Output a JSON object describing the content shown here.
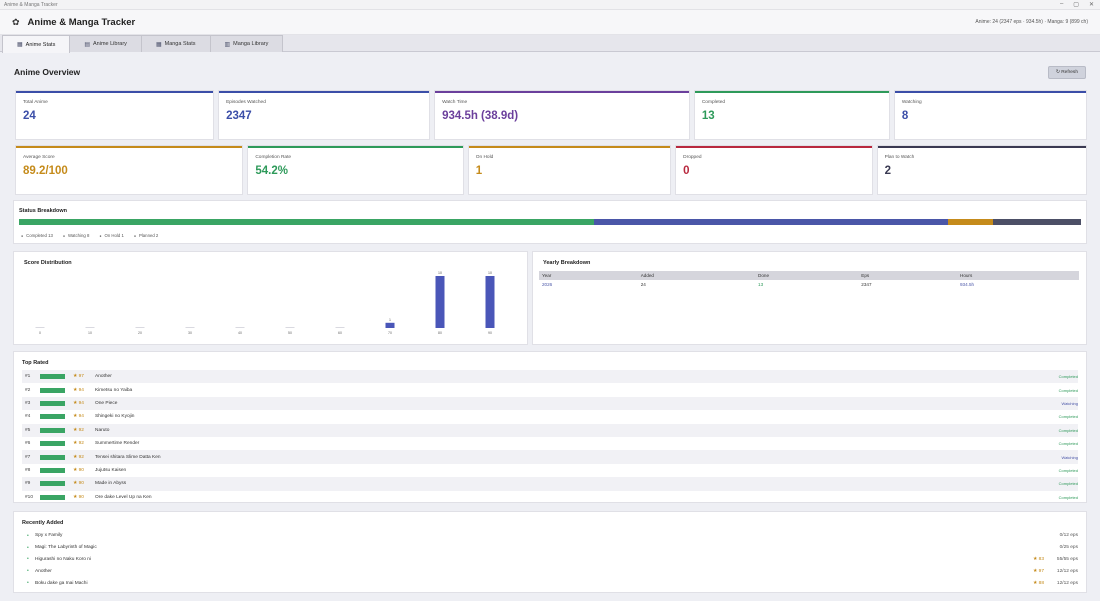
{
  "window": {
    "title": "Anime & Manga Tracker"
  },
  "header": {
    "title": "Anime & Manga Tracker",
    "summary": "Anime: 24 (2347 eps · 934.5h)  ·  Manga: 9 (899 ch)"
  },
  "tabs": [
    {
      "label": "Anime Stats",
      "active": true
    },
    {
      "label": "Anime Library",
      "active": false
    },
    {
      "label": "Manga Stats",
      "active": false
    },
    {
      "label": "Manga Library",
      "active": false
    }
  ],
  "overview": {
    "title": "Anime Overview",
    "refresh_label": "↻ Refresh"
  },
  "stats_row1": [
    {
      "label": "Total Anime",
      "value": "24",
      "color": "#3b4ea8"
    },
    {
      "label": "Episodes Watched",
      "value": "2347",
      "color": "#3b4ea8"
    },
    {
      "label": "Watch Time",
      "value": "934.5h (38.9d)",
      "color": "#6b3f9c"
    },
    {
      "label": "Completed",
      "value": "13",
      "color": "#2e9a5a"
    },
    {
      "label": "Watching",
      "value": "8",
      "color": "#3b4ea8"
    }
  ],
  "stats_row2": [
    {
      "label": "Average Score",
      "value": "89.2/100",
      "color": "#c58b1b"
    },
    {
      "label": "Completion Rate",
      "value": "54.2%",
      "color": "#2e9a5a"
    },
    {
      "label": "On Hold",
      "value": "1",
      "color": "#c58b1b"
    },
    {
      "label": "Dropped",
      "value": "0",
      "color": "#b8283e"
    },
    {
      "label": "Plan to Watch",
      "value": "2",
      "color": "#3a3a52"
    }
  ],
  "status": {
    "title": "Status Breakdown",
    "segments": [
      {
        "label": "Completed 13",
        "count": 13,
        "color": "#3aa564"
      },
      {
        "label": "Watching 8",
        "count": 8,
        "color": "#4a56a8"
      },
      {
        "label": "On Hold 1",
        "count": 1,
        "color": "#c58b1b"
      },
      {
        "label": "Planned 2",
        "count": 2,
        "color": "#4c4f66"
      }
    ]
  },
  "chart_data": {
    "type": "bar",
    "title": "Score Distribution",
    "categories": [
      "0",
      "10",
      "20",
      "30",
      "40",
      "50",
      "60",
      "70",
      "80",
      "90"
    ],
    "values": [
      0,
      0,
      0,
      0,
      0,
      0,
      0,
      1,
      10,
      10
    ]
  },
  "yearly": {
    "title": "Yearly Breakdown",
    "columns": [
      "Year",
      "Added",
      "Done",
      "Eps",
      "Hours"
    ],
    "rows": [
      [
        "2026",
        "24",
        "13",
        "2347",
        "934.5h"
      ]
    ]
  },
  "top_rated": {
    "title": "Top Rated",
    "items": [
      {
        "rank": "#1",
        "score": "★ 97",
        "name": "Another",
        "status": "Completed"
      },
      {
        "rank": "#2",
        "score": "★ 94",
        "name": "Kimetsu no Yaiba",
        "status": "Completed"
      },
      {
        "rank": "#3",
        "score": "★ 94",
        "name": "One Piece",
        "status": "Watching"
      },
      {
        "rank": "#4",
        "score": "★ 94",
        "name": "Shingeki no Kyojin",
        "status": "Completed"
      },
      {
        "rank": "#5",
        "score": "★ 92",
        "name": "Naruto",
        "status": "Completed"
      },
      {
        "rank": "#6",
        "score": "★ 92",
        "name": "Summertime Render",
        "status": "Completed"
      },
      {
        "rank": "#7",
        "score": "★ 92",
        "name": "Tensei shitara Slime Datta Ken",
        "status": "Watching"
      },
      {
        "rank": "#8",
        "score": "★ 90",
        "name": "Jujutsu Kaisen",
        "status": "Completed"
      },
      {
        "rank": "#9",
        "score": "★ 90",
        "name": "Made in Abyss",
        "status": "Completed"
      },
      {
        "rank": "#10",
        "score": "★ 90",
        "name": "Ore dake Level Up na Ken",
        "status": "Completed"
      }
    ],
    "status_colors": {
      "Completed": "#2e9a5a",
      "Watching": "#4a56a8"
    }
  },
  "recent": {
    "title": "Recently Added",
    "items": [
      {
        "name": "Spy x Family",
        "score": "",
        "eps": "0/12 eps"
      },
      {
        "name": "Magi: The Labyrinth of Magic",
        "score": "",
        "eps": "0/25 eps"
      },
      {
        "name": "Higurashi no Naku Koro ni",
        "score": "★ 83",
        "eps": "55/55 eps"
      },
      {
        "name": "Another",
        "score": "★ 97",
        "eps": "12/12 eps"
      },
      {
        "name": "Boku dake ga Inai Machi",
        "score": "★ 88",
        "eps": "12/12 eps"
      }
    ]
  }
}
